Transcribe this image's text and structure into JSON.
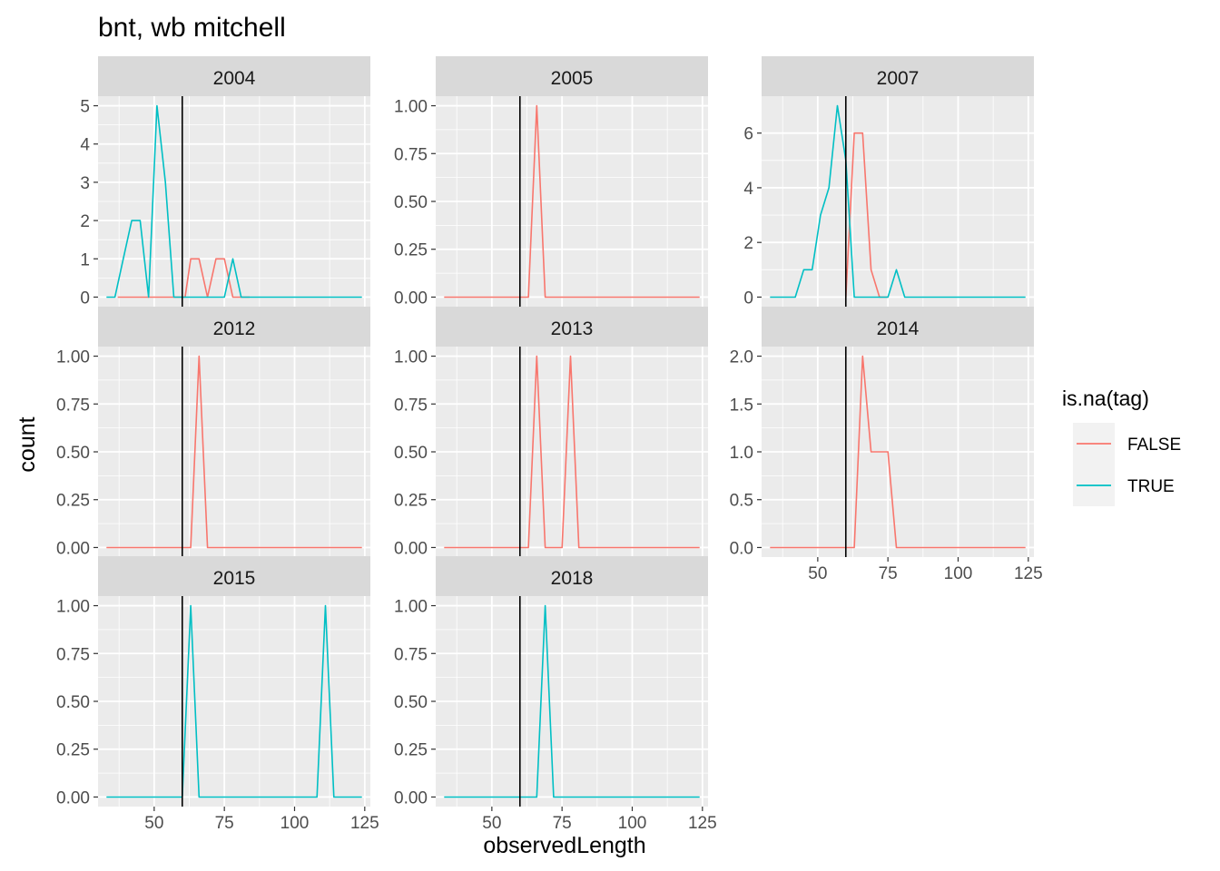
{
  "chart_data": {
    "type": "line",
    "title": "bnt, wb mitchell",
    "xlabel": "observedLength",
    "ylabel": "count",
    "xlim": [
      30,
      127
    ],
    "x_ticks": [
      50,
      75,
      100,
      125
    ],
    "x_tick_labels": [
      "50",
      "75",
      "100",
      "125"
    ],
    "vline_x": 60,
    "grid": true,
    "legend": {
      "title": "is.na(tag)",
      "position": "right",
      "entries": [
        {
          "label": "FALSE",
          "color": "#F8766D"
        },
        {
          "label": "TRUE",
          "color": "#00BFC4"
        }
      ]
    },
    "panels": [
      {
        "label": "2004",
        "ylim": [
          -0.25,
          5.25
        ],
        "y_ticks": [
          0,
          1,
          2,
          3,
          4,
          5
        ],
        "y_tick_labels": [
          "0",
          "1",
          "2",
          "3",
          "4",
          "5"
        ],
        "series": [
          {
            "name": "FALSE",
            "color": "#F8766D",
            "x": [
              37,
              61,
              63,
              66,
              69,
              72,
              75,
              78,
              81,
              84
            ],
            "y": [
              0,
              0,
              1,
              1,
              0,
              1,
              1,
              0,
              0,
              0
            ]
          },
          {
            "name": "TRUE",
            "color": "#00BFC4",
            "x": [
              33,
              36,
              39,
              42,
              45,
              48,
              51,
              54,
              57,
              60,
              63,
              66,
              69,
              72,
              75,
              78,
              81,
              84,
              124
            ],
            "y": [
              0,
              0,
              1,
              2,
              2,
              0,
              5,
              3,
              0,
              0,
              0,
              0,
              0,
              0,
              0,
              1,
              0,
              0,
              0
            ]
          }
        ]
      },
      {
        "label": "2005",
        "ylim": [
          -0.05,
          1.05
        ],
        "y_ticks": [
          0,
          0.25,
          0.5,
          0.75,
          1
        ],
        "y_tick_labels": [
          "0.00",
          "0.25",
          "0.50",
          "0.75",
          "1.00"
        ],
        "series": [
          {
            "name": "FALSE",
            "color": "#F8766D",
            "x": [
              33,
              63,
              66,
              69,
              124
            ],
            "y": [
              0,
              0,
              1,
              0,
              0
            ]
          }
        ]
      },
      {
        "label": "2007",
        "ylim": [
          -0.35,
          7.35
        ],
        "y_ticks": [
          0,
          2,
          4,
          6
        ],
        "y_tick_labels": [
          "0",
          "2",
          "4",
          "6"
        ],
        "series": [
          {
            "name": "FALSE",
            "color": "#F8766D",
            "x": [
              60,
              63,
              66,
              69,
              72,
              75
            ],
            "y": [
              0,
              6,
              6,
              1,
              0,
              0
            ]
          },
          {
            "name": "TRUE",
            "color": "#00BFC4",
            "x": [
              33,
              42,
              45,
              48,
              51,
              54,
              57,
              60,
              63,
              66,
              69,
              72,
              75,
              78,
              81,
              84,
              124
            ],
            "y": [
              0,
              0,
              1,
              1,
              3,
              4,
              7,
              5,
              0,
              0,
              0,
              0,
              0,
              1,
              0,
              0,
              0
            ]
          }
        ]
      },
      {
        "label": "2012",
        "ylim": [
          -0.05,
          1.05
        ],
        "y_ticks": [
          0,
          0.25,
          0.5,
          0.75,
          1
        ],
        "y_tick_labels": [
          "0.00",
          "0.25",
          "0.50",
          "0.75",
          "1.00"
        ],
        "series": [
          {
            "name": "FALSE",
            "color": "#F8766D",
            "x": [
              33,
              63,
              66,
              69,
              124
            ],
            "y": [
              0,
              0,
              1,
              0,
              0
            ]
          }
        ]
      },
      {
        "label": "2013",
        "ylim": [
          -0.05,
          1.05
        ],
        "y_ticks": [
          0,
          0.25,
          0.5,
          0.75,
          1
        ],
        "y_tick_labels": [
          "0.00",
          "0.25",
          "0.50",
          "0.75",
          "1.00"
        ],
        "series": [
          {
            "name": "FALSE",
            "color": "#F8766D",
            "x": [
              33,
              63,
              66,
              69,
              75,
              78,
              81,
              124
            ],
            "y": [
              0,
              0,
              1,
              0,
              0,
              1,
              0,
              0
            ]
          }
        ]
      },
      {
        "label": "2014",
        "ylim": [
          -0.1,
          2.1
        ],
        "y_ticks": [
          0,
          0.5,
          1,
          1.5,
          2
        ],
        "y_tick_labels": [
          "0.0",
          "0.5",
          "1.0",
          "1.5",
          "2.0"
        ],
        "series": [
          {
            "name": "FALSE",
            "color": "#F8766D",
            "x": [
              33,
              63,
              66,
              69,
              72,
              75,
              78,
              124
            ],
            "y": [
              0,
              0,
              2,
              1,
              1,
              1,
              0,
              0
            ]
          }
        ]
      },
      {
        "label": "2015",
        "ylim": [
          -0.05,
          1.05
        ],
        "y_ticks": [
          0,
          0.25,
          0.5,
          0.75,
          1
        ],
        "y_tick_labels": [
          "0.00",
          "0.25",
          "0.50",
          "0.75",
          "1.00"
        ],
        "series": [
          {
            "name": "TRUE",
            "color": "#00BFC4",
            "x": [
              33,
              60,
              63,
              66,
              108,
              111,
              114,
              124
            ],
            "y": [
              0,
              0,
              1,
              0,
              0,
              1,
              0,
              0
            ]
          }
        ]
      },
      {
        "label": "2018",
        "ylim": [
          -0.05,
          1.05
        ],
        "y_ticks": [
          0,
          0.25,
          0.5,
          0.75,
          1
        ],
        "y_tick_labels": [
          "0.00",
          "0.25",
          "0.50",
          "0.75",
          "1.00"
        ],
        "series": [
          {
            "name": "TRUE",
            "color": "#00BFC4",
            "x": [
              33,
              66,
              69,
              72,
              124
            ],
            "y": [
              0,
              0,
              1,
              0,
              0
            ]
          }
        ]
      }
    ]
  }
}
